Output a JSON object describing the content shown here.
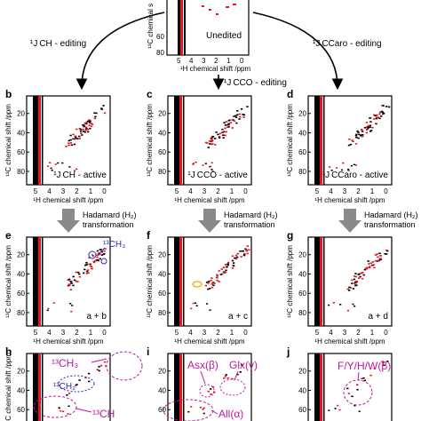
{
  "colors": {
    "red": "#e8141b",
    "black": "#000000",
    "annotation": "#c0169a",
    "blue": "#2a2ab8",
    "arrow_gray": "#8a8a8a",
    "orange": "#f0a400"
  },
  "top": {
    "unedited_label": "Unedited",
    "arrow_left_label": "¹J CH - editing",
    "arrow_right_label": "¹J CCaro - editing",
    "arrow_mid_label": "¹J CCO - editing",
    "ylabel_fragment": "¹³C chemical s",
    "yticks": [
      "60",
      "80"
    ],
    "xticks": [
      "5",
      "4",
      "3",
      "2",
      "1",
      "0"
    ],
    "xlabel": "¹H chemical shift /ppm"
  },
  "common": {
    "ylabel": "¹³C chemical shift /ppm",
    "xlabel": "¹H chemical shift /ppm",
    "xticks": [
      "5",
      "4",
      "3",
      "2",
      "1",
      "0"
    ],
    "yticks": [
      "20",
      "40",
      "60",
      "80"
    ]
  },
  "panels": [
    {
      "label": "b",
      "note": "¹J CH - active"
    },
    {
      "label": "c",
      "note": "¹J CCO - active"
    },
    {
      "label": "d",
      "note": "¹J CCaro - active"
    },
    {
      "label": "e",
      "note": "a + b"
    },
    {
      "label": "f",
      "note": "a + c"
    },
    {
      "label": "g",
      "note": "a + d"
    },
    {
      "label": "h",
      "note": ""
    },
    {
      "label": "i",
      "note": ""
    },
    {
      "label": "j",
      "note": ""
    }
  ],
  "hadamard": {
    "line1": "Hadamard (H₂)",
    "line2": "transformation"
  },
  "annotations": {
    "e_ch3": "¹³CH₃",
    "h_ch3": "¹³CH₃",
    "h_ch2": "¹³CH₂",
    "h_ch": "¹³CH",
    "i_asx": "Asx(β)",
    "i_glx": "Glx(γ)",
    "i_all": "All(α)",
    "j_aro": "F/Y/H/W(β)"
  }
}
